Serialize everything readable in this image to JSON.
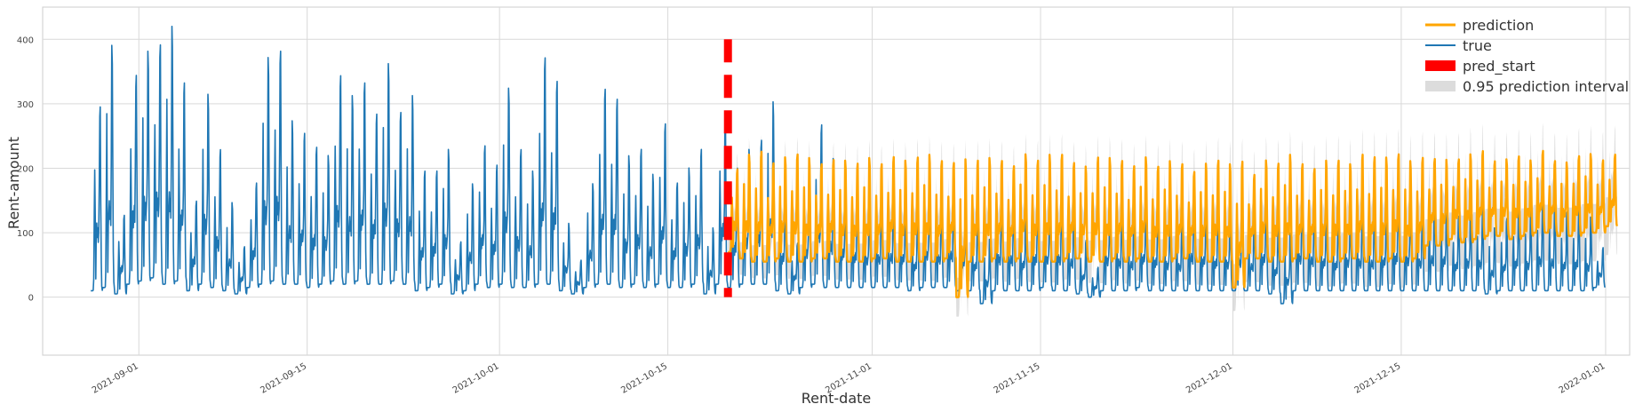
{
  "chart_data": {
    "type": "line",
    "xlabel": "Rent-date",
    "ylabel": "Rent-amount",
    "x_range": [
      "2021-08-24",
      "2022-01-03"
    ],
    "ylim": [
      -90,
      450
    ],
    "grid": true,
    "legend_position": "top-right",
    "x_ticks": [
      "2021-09-01",
      "2021-09-15",
      "2021-10-01",
      "2021-10-15",
      "2021-11-01",
      "2021-11-15",
      "2021-12-01",
      "2021-12-15",
      "2022-01-01"
    ],
    "y_ticks": [
      0,
      100,
      200,
      300,
      400
    ],
    "colors": {
      "true": "#1f77b4",
      "prediction": "#ffa500",
      "pred_start": "#ff0000",
      "interval": "#d3d3d3"
    },
    "pred_start_date": "2021-10-20",
    "pred_start_range": [
      0,
      400
    ],
    "series": [
      {
        "name": "true",
        "x_start": "2021-08-28",
        "x_end": "2022-01-01",
        "daily_peak": [
          310,
          400,
          130,
          370,
          400,
          410,
          430,
          340,
          160,
          330,
          240,
          150,
          80,
          190,
          390,
          400,
          280,
          260,
          250,
          230,
          360,
          320,
          340,
          305,
          380,
          300,
          320,
          200,
          210,
          240,
          90,
          180,
          240,
          220,
          340,
          240,
          200,
          380,
          360,
          120,
          60,
          180,
          330,
          330,
          230,
          240,
          195,
          275,
          190,
          210,
          240,
          110,
          290,
          215,
          240,
          255,
          310,
          175,
          90,
          195,
          280,
          220,
          185,
          170,
          155,
          160,
          165,
          160,
          135,
          185,
          160,
          175,
          150,
          135,
          95,
          170,
          165,
          140,
          170,
          160,
          170,
          150,
          90,
          50,
          165,
          150,
          140,
          160,
          155,
          140,
          130,
          175,
          160,
          150,
          145,
          155,
          130,
          170,
          120,
          105,
          175,
          160,
          150,
          140,
          155,
          150,
          145,
          155,
          175,
          165,
          150,
          165,
          160,
          135,
          150,
          145,
          110,
          125,
          150,
          140,
          160,
          150,
          135,
          145,
          130,
          80
        ],
        "daily_trough": [
          10,
          15,
          5,
          20,
          25,
          30,
          20,
          25,
          10,
          20,
          15,
          10,
          5,
          15,
          20,
          25,
          20,
          20,
          15,
          20,
          25,
          20,
          25,
          20,
          20,
          25,
          20,
          10,
          15,
          20,
          5,
          10,
          20,
          15,
          20,
          15,
          15,
          20,
          20,
          10,
          5,
          15,
          20,
          20,
          15,
          20,
          15,
          20,
          15,
          15,
          20,
          5,
          20,
          15,
          20,
          20,
          20,
          10,
          5,
          15,
          20,
          15,
          15,
          15,
          15,
          15,
          15,
          15,
          10,
          15,
          15,
          15,
          10,
          10,
          -10,
          10,
          10,
          10,
          10,
          15,
          10,
          10,
          5,
          0,
          10,
          10,
          10,
          15,
          10,
          10,
          10,
          10,
          10,
          10,
          10,
          10,
          10,
          10,
          5,
          -10,
          10,
          10,
          10,
          10,
          10,
          10,
          10,
          10,
          10,
          10,
          10,
          10,
          10,
          10,
          10,
          10,
          5,
          10,
          10,
          10,
          10,
          10,
          10,
          10,
          10,
          15
        ]
      },
      {
        "name": "prediction",
        "x_start": "2021-10-20",
        "x_end": "2022-01-01",
        "daily_peak": [
          205,
          225,
          230,
          220,
          225,
          230,
          220,
          210,
          225,
          220,
          215,
          220,
          210,
          230,
          220,
          225,
          225,
          215,
          220,
          225,
          220,
          220,
          215,
          215,
          230,
          220,
          225,
          225,
          220,
          210,
          225,
          220,
          215,
          215,
          225,
          210,
          215,
          210,
          205,
          215,
          220,
          210,
          215,
          200,
          220,
          215,
          225,
          210,
          210,
          220,
          220,
          210,
          225,
          230,
          225,
          230,
          215,
          220,
          225,
          220,
          220,
          225,
          230,
          220,
          220,
          225,
          215,
          230,
          220,
          215,
          225,
          225,
          215,
          230
        ],
        "daily_trough": [
          70,
          60,
          55,
          55,
          60,
          55,
          55,
          60,
          60,
          55,
          55,
          55,
          60,
          60,
          55,
          55,
          55,
          55,
          60,
          0,
          55,
          55,
          60,
          55,
          60,
          55,
          55,
          55,
          60,
          60,
          55,
          55,
          60,
          55,
          60,
          55,
          55,
          60,
          60,
          55,
          55,
          55,
          15,
          60,
          60,
          55,
          55,
          60,
          60,
          55,
          55,
          60,
          60,
          55,
          55,
          60,
          55,
          60,
          80,
          80,
          90,
          85,
          90,
          95,
          95,
          90,
          95,
          100,
          100,
          95,
          95,
          100,
          100,
          110
        ]
      }
    ],
    "prediction_interval": {
      "name": "0.95 prediction interval",
      "half_width_start": 25,
      "half_width_end": 45
    },
    "legend": [
      "prediction",
      "true",
      "pred_start",
      "0.95 prediction interval"
    ]
  }
}
